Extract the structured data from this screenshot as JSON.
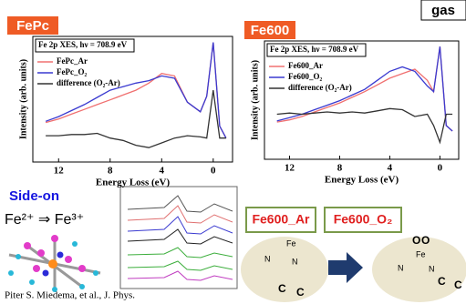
{
  "chart_data": [
    {
      "type": "line",
      "title": "FePc",
      "annotation": "Fe 2p XES, hν = 708.9 eV",
      "x_label": "Energy Loss (eV)",
      "y_label": "Intensity (arb. units)",
      "x": [
        13,
        12,
        11,
        10,
        9,
        8,
        7,
        6,
        5,
        4,
        3,
        2,
        1,
        0.5,
        0,
        -0.5,
        -1
      ],
      "xlim": [
        14,
        -1.5
      ],
      "xticks": [
        12,
        8,
        4,
        0
      ],
      "ylim": [
        0,
        1.05
      ],
      "series": [
        {
          "name": "FePc_Ar",
          "color": "#f07070",
          "values": [
            0.33,
            0.36,
            0.4,
            0.44,
            0.48,
            0.52,
            0.56,
            0.6,
            0.66,
            0.74,
            0.72,
            0.5,
            0.42,
            0.55,
            1.0,
            0.3,
            0.2
          ]
        },
        {
          "name": "FePc_O₂",
          "color": "#3a3ad0",
          "values": [
            0.34,
            0.38,
            0.43,
            0.48,
            0.54,
            0.6,
            0.63,
            0.66,
            0.68,
            0.72,
            0.7,
            0.5,
            0.42,
            0.55,
            1.0,
            0.3,
            0.2
          ]
        },
        {
          "name": "difference (O₂-Ar)",
          "color": "#333333",
          "values": [
            0.22,
            0.22,
            0.23,
            0.23,
            0.24,
            0.2,
            0.18,
            0.14,
            0.12,
            0.16,
            0.2,
            0.22,
            0.21,
            0.2,
            0.6,
            0.2,
            0.2
          ]
        }
      ]
    },
    {
      "type": "line",
      "title": "Fe600",
      "annotation": "Fe 2p XES, hν = 708.9 eV",
      "x_label": "Energy Loss (eV)",
      "y_label": "Intensity (arb. units)",
      "x": [
        13,
        12,
        11,
        10,
        9,
        8,
        7,
        6,
        5,
        4,
        3,
        2,
        1,
        0.5,
        0,
        -0.5,
        -1
      ],
      "xlim": [
        14,
        -1.5
      ],
      "xticks": [
        12,
        8,
        4,
        0
      ],
      "ylim": [
        0,
        1.05
      ],
      "series": [
        {
          "name": "Fe600_Ar",
          "color": "#f07070",
          "values": [
            0.33,
            0.35,
            0.38,
            0.42,
            0.46,
            0.5,
            0.55,
            0.6,
            0.66,
            0.72,
            0.76,
            0.8,
            0.7,
            0.6,
            1.0,
            0.3,
            0.25
          ]
        },
        {
          "name": "Fe600_O₂",
          "color": "#3a3ad0",
          "values": [
            0.34,
            0.37,
            0.4,
            0.44,
            0.48,
            0.52,
            0.57,
            0.62,
            0.7,
            0.78,
            0.82,
            0.78,
            0.65,
            0.6,
            1.0,
            0.3,
            0.25
          ]
        },
        {
          "name": "difference (O₂-Ar)",
          "color": "#333333",
          "values": [
            0.4,
            0.41,
            0.4,
            0.41,
            0.42,
            0.41,
            0.42,
            0.41,
            0.43,
            0.45,
            0.44,
            0.38,
            0.4,
            0.3,
            0.15,
            0.4,
            0.4
          ]
        }
      ]
    }
  ],
  "slide": {
    "gas_label": "gas",
    "side_on": "Side-on",
    "oxidation": "Fe²⁺ ⇒ Fe³⁺",
    "states": [
      "Fe600_Ar",
      "Fe600_O₂"
    ],
    "structure_ar": [
      "Fe",
      "N",
      "N",
      "C",
      "C"
    ],
    "structure_o2": [
      "O",
      "O",
      "Fe",
      "N",
      "N",
      "C",
      "C"
    ],
    "citation": "Piter S. Miedema, et al., J. Phys."
  }
}
